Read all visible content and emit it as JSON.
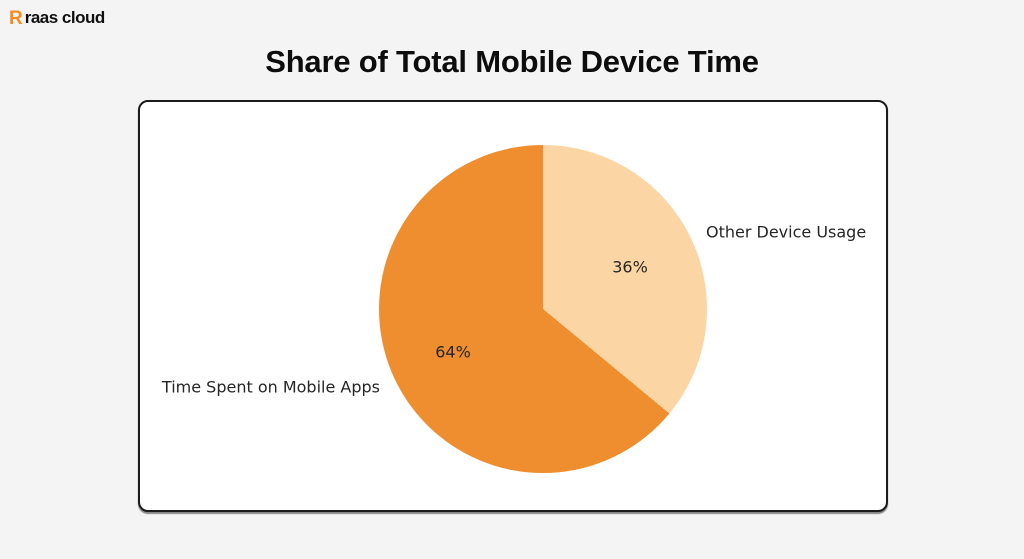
{
  "logo": {
    "icon_glyph": "R",
    "icon_color": "#F68B1F",
    "text": "raas cloud"
  },
  "page": {
    "background_color": "#F4F4F4",
    "card_background": "#FFFFFF",
    "card_border_color": "#1B1B1B"
  },
  "chart_data": {
    "type": "pie",
    "title": "Share of Total Mobile Device Time",
    "labels": [
      "Time Spent on Mobile Apps",
      "Other Device Usage"
    ],
    "values": [
      64,
      36
    ],
    "pct_labels": [
      "64%",
      "36%"
    ],
    "colors": [
      "#EF8E2E",
      "#FCD5A4"
    ],
    "start_angle": 90,
    "counterclock": true,
    "legend": "none",
    "label_position": "outside",
    "text_color": "#262626"
  }
}
